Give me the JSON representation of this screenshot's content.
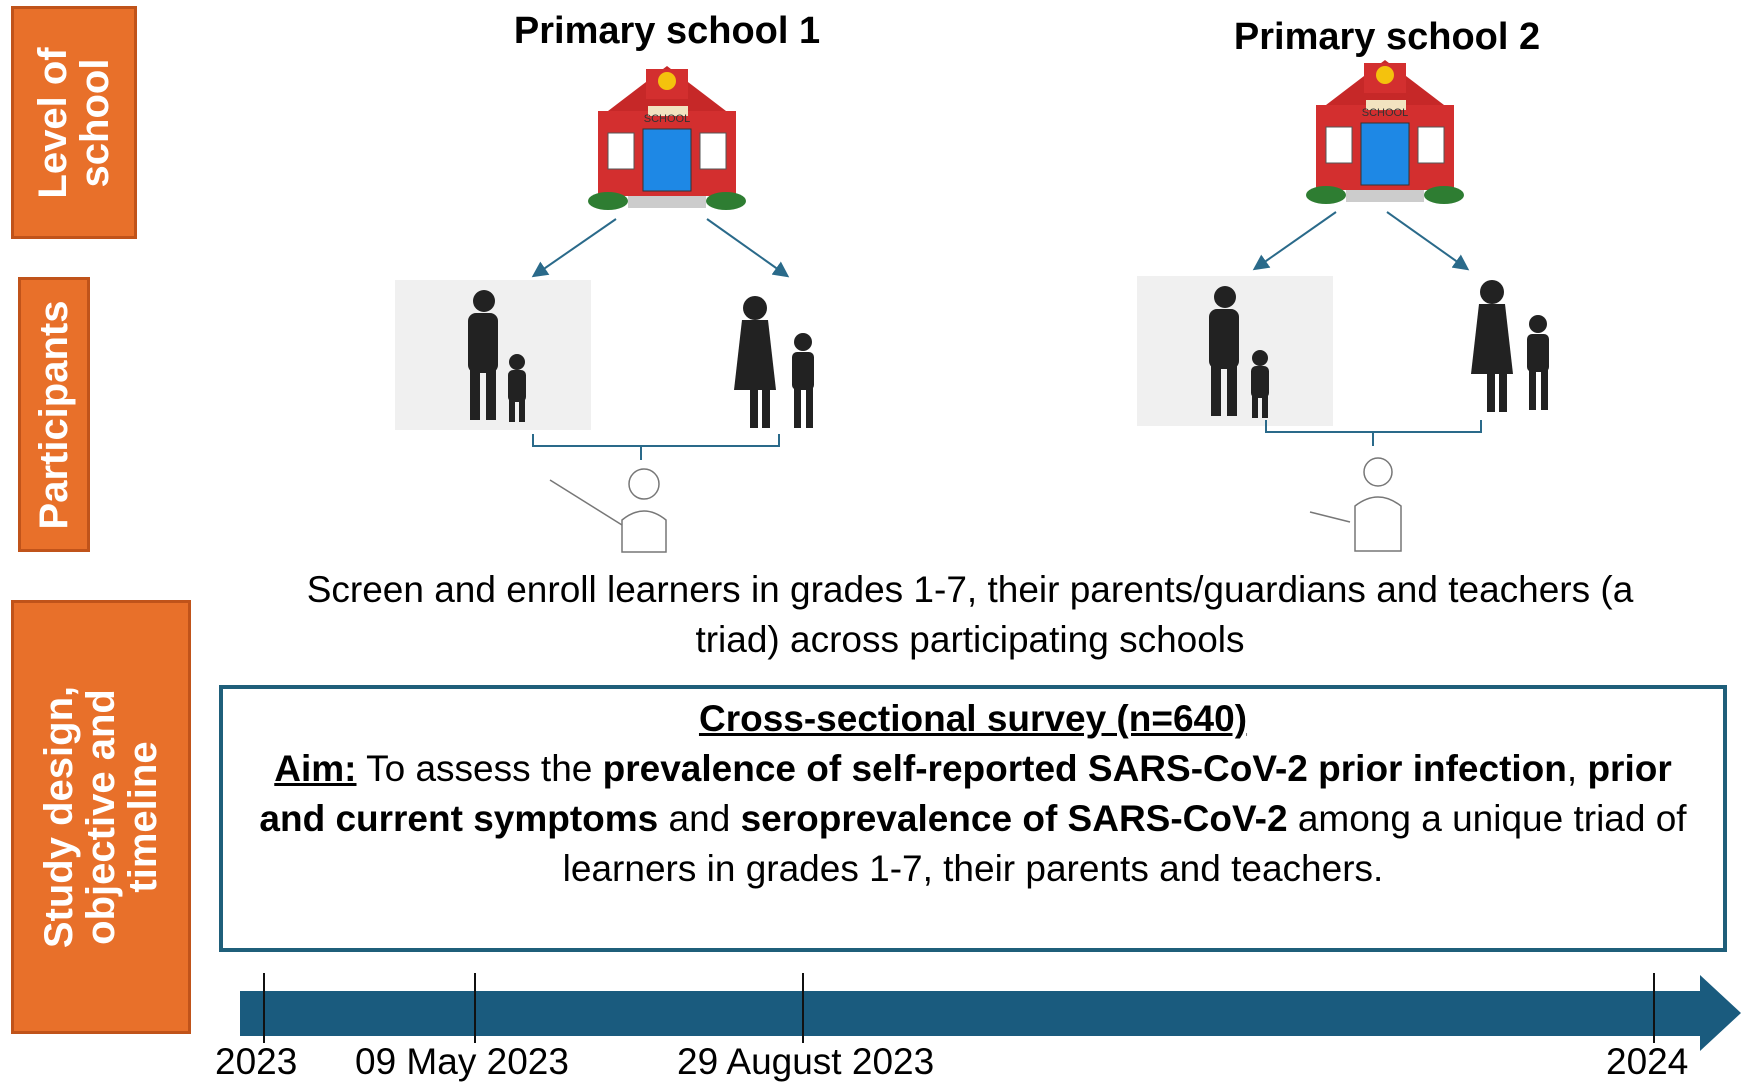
{
  "sidebar": {
    "level": "Level of school",
    "participants": "Participants",
    "design": "Study design, objective and timeline"
  },
  "schools": [
    {
      "title": "Primary school 1",
      "sign": "SCHOOL"
    },
    {
      "title": "Primary school 2",
      "sign": "SCHOOL"
    }
  ],
  "enrollment": "Screen and enroll learners in grades 1-7, their parents/guardians and teachers (a triad) across participating schools",
  "survey": {
    "title": "Cross-sectional survey (n=640)",
    "aim_label": "Aim:",
    "segments": [
      "To assess the",
      "prevalence of self-reported SARS-CoV-2 prior infection",
      ",",
      "prior and current symptoms",
      "and",
      "seroprevalence of SARS-CoV-2",
      "among a unique triad of learners in grades 1-7, their parents and teachers."
    ]
  },
  "timeline": [
    "2023",
    "09 May 2023",
    "29 August 2023",
    "2024"
  ]
}
